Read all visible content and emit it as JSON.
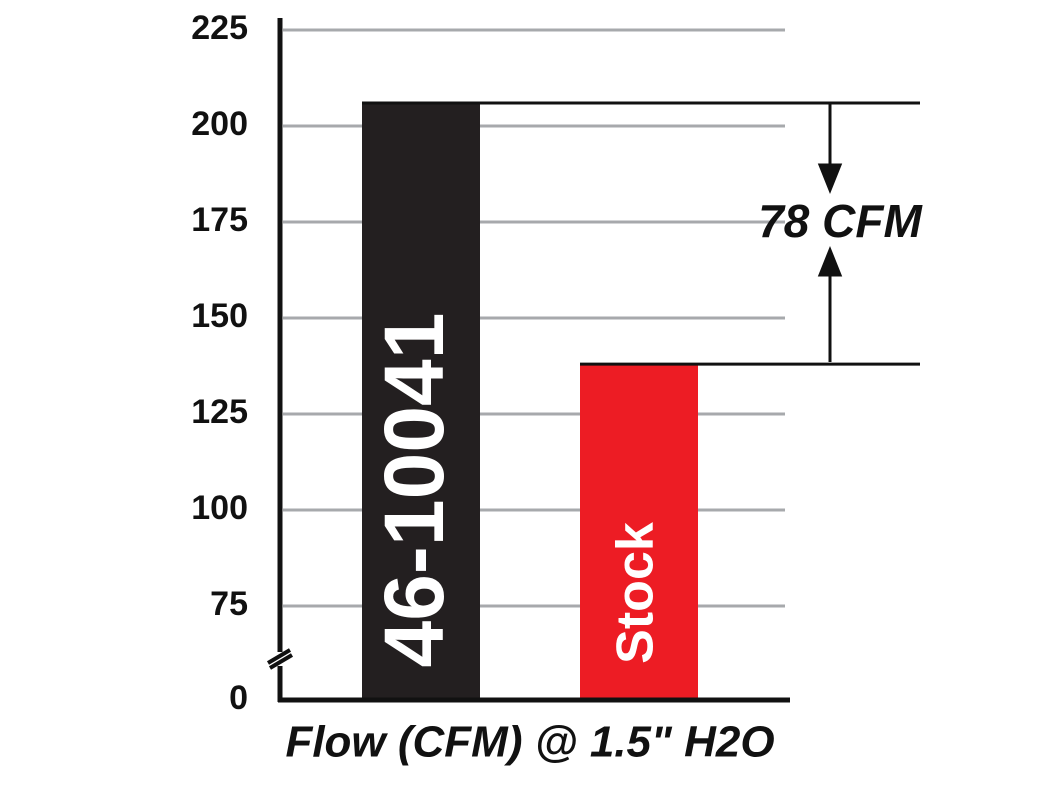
{
  "chart_data": {
    "type": "bar",
    "categories": [
      "46-10041",
      "Stock"
    ],
    "values": [
      206,
      138
    ],
    "colors": [
      "#231f20",
      "#ed1c24"
    ],
    "ylim": [
      0,
      225
    ],
    "yticks": [
      0,
      75,
      100,
      125,
      150,
      175,
      200,
      225
    ],
    "y_axis_break": true,
    "grid": true,
    "xlabel": "Flow (CFM) @ 1.5\" H2O",
    "annotation": "78 CFM"
  }
}
